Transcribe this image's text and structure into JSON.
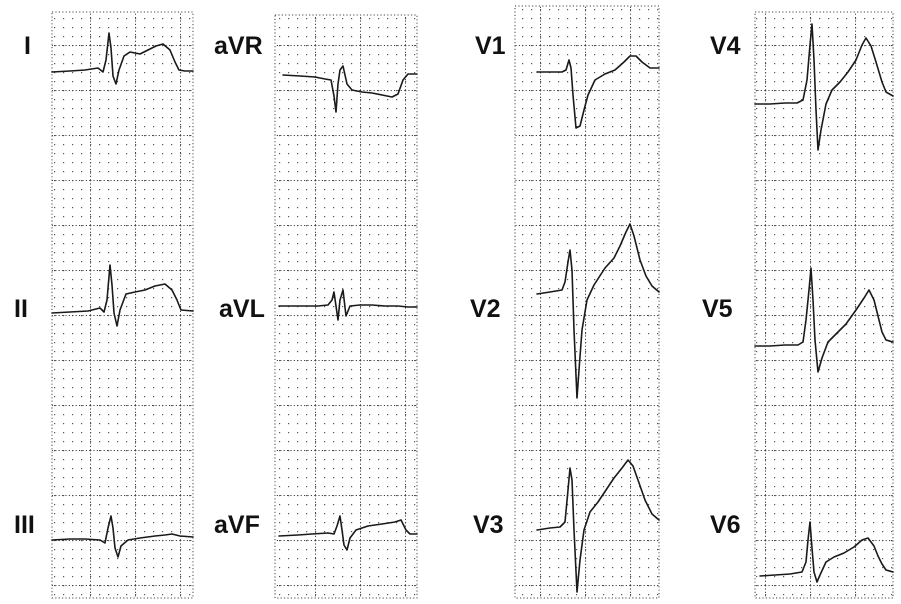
{
  "colors": {
    "background": "#ffffff",
    "grid_dots": "#555555",
    "trace": "#1a1a1a",
    "label": "#111111"
  },
  "leads": {
    "I": "I",
    "II": "II",
    "III": "III",
    "aVR": "aVR",
    "aVL": "aVL",
    "aVF": "aVF",
    "V1": "V1",
    "V2": "V2",
    "V3": "V3",
    "V4": "V4",
    "V5": "V5",
    "V6": "V6"
  }
}
